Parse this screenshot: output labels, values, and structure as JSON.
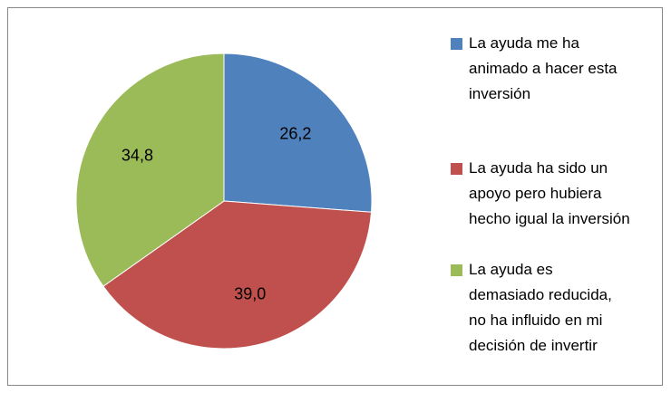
{
  "chart_data": {
    "type": "pie",
    "categories": [
      "La ayuda me ha animado a hacer esta inversión",
      "La ayuda ha sido un apoyo pero hubiera hecho igual la inversión",
      "La ayuda es demasiado reducida, no ha influido en mi decisión de invertir"
    ],
    "values": [
      26.2,
      39.0,
      34.8
    ],
    "value_labels": [
      "26,2",
      "39,0",
      "34,8"
    ],
    "colors": [
      "#4f81bd",
      "#c0504d",
      "#9bbb59"
    ]
  }
}
